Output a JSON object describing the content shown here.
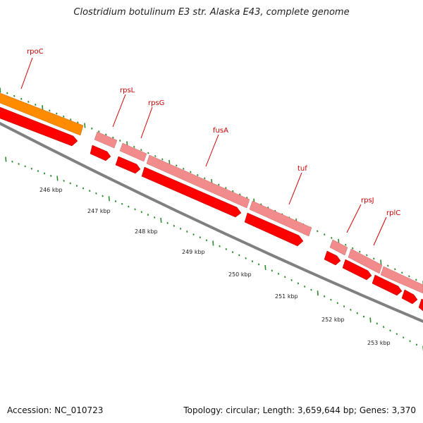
{
  "title": "Clostridium botulinum E3 str. Alaska E43, complete genome",
  "footer": {
    "accession_label": "Accession:",
    "accession": "NC_010723",
    "topology_label": "Topology:",
    "topology": "circular",
    "length_label": "Length:",
    "length": "3,659,644 bp",
    "genes_label": "Genes:",
    "genes": "3,370"
  },
  "colors": {
    "cds": "#ff0000",
    "cds_light": "#f28c8c",
    "rrna_orange": "#ff8c00",
    "backbone": "#808080",
    "tick_minor": "#2e8b2e",
    "label": "#cc0000"
  },
  "scale": {
    "tick_labels": [
      "246 kbp",
      "247 kbp",
      "248 kbp",
      "249 kbp",
      "250 kbp",
      "251 kbp",
      "252 kbp",
      "253 kbp"
    ]
  },
  "genes": [
    {
      "name": "rpoC"
    },
    {
      "name": "rpsL"
    },
    {
      "name": "rpsG"
    },
    {
      "name": "fusA"
    },
    {
      "name": "tuf"
    },
    {
      "name": "rpsJ"
    },
    {
      "name": "rplC"
    }
  ]
}
